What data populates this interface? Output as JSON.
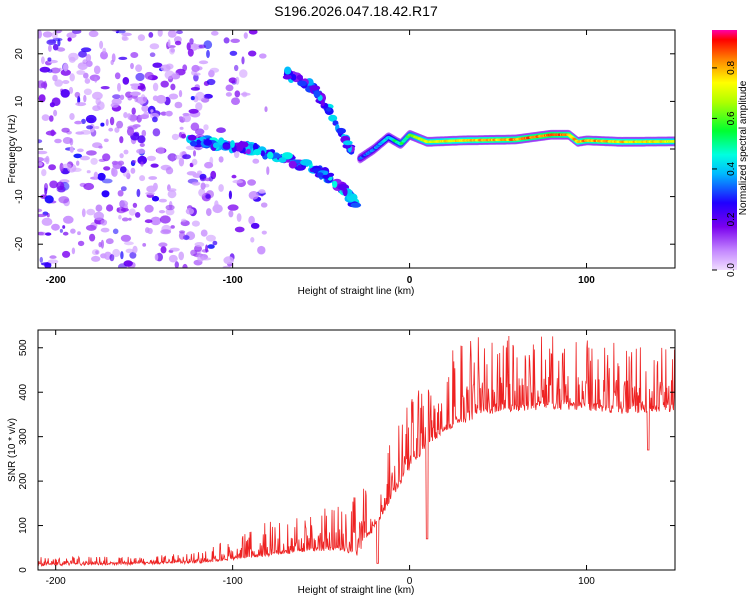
{
  "figure": {
    "title": "S196.2026.047.18.42.R17"
  },
  "chart_data": [
    {
      "type": "heatmap",
      "panel": "top",
      "xlabel": "Height of straight line (km)",
      "ylabel": "Frequency (Hz)",
      "xlim": [
        -210,
        150
      ],
      "ylim": [
        -25,
        25
      ],
      "xticks": [
        -200,
        -100,
        0,
        100
      ],
      "xtick_labels": [
        "-200",
        "-100",
        "0",
        "100"
      ],
      "yticks": [
        -20,
        -10,
        0,
        10,
        20
      ],
      "ytick_labels": [
        "-20",
        "-10",
        "0",
        "10",
        "20"
      ],
      "colorbar": {
        "label": "Normalized spectral amplitude",
        "range": [
          0,
          0.95
        ],
        "ticks": [
          0,
          0.2,
          0.4,
          0.6,
          0.8
        ],
        "tick_labels": [
          "0.0",
          "0.2",
          "0.4",
          "0.6",
          "0.8"
        ]
      },
      "features": {
        "carrier_line": {
          "x": [
            -28,
            -20,
            -12,
            -5,
            0,
            10,
            30,
            60,
            80,
            90,
            95,
            100,
            120,
            150
          ],
          "freq": [
            -2,
            0,
            2.5,
            1,
            3,
            1.5,
            1.8,
            2,
            3,
            3,
            1.5,
            1.8,
            1.5,
            1.6
          ],
          "amplitude": [
            0.3,
            0.35,
            0.45,
            0.55,
            0.6,
            0.75,
            0.8,
            0.85,
            0.9,
            0.85,
            0.8,
            0.85,
            0.8,
            0.75
          ]
        },
        "upper_branch": {
          "x": [
            -70,
            -55,
            -45,
            -38,
            -32
          ],
          "freq": [
            16,
            13,
            8,
            3,
            -1
          ]
        },
        "lower_branch": {
          "x": [
            -128,
            -110,
            -90,
            -70,
            -55,
            -45,
            -35,
            -30
          ],
          "freq": [
            2,
            1,
            0,
            -2,
            -4,
            -6,
            -9,
            -12
          ]
        },
        "noise_region": {
          "x_range": [
            -210,
            -100
          ],
          "freq_range": [
            -25,
            25
          ]
        }
      }
    },
    {
      "type": "line",
      "panel": "bottom",
      "xlabel": "Height of straight line (km)",
      "ylabel": "SNR (10 * v/v)",
      "xlim": [
        -210,
        150
      ],
      "ylim": [
        0,
        540
      ],
      "xticks": [
        -200,
        -100,
        0,
        100
      ],
      "xtick_labels": [
        "-200",
        "-100",
        "0",
        "100"
      ],
      "yticks": [
        0,
        100,
        200,
        300,
        400,
        500
      ],
      "ytick_labels": [
        "0",
        "100",
        "200",
        "300",
        "400",
        "500"
      ],
      "series": [
        {
          "name": "SNR",
          "color": "#ee2222",
          "baseline": {
            "x": [
              -210,
              -150,
              -120,
              -100,
              -80,
              -60,
              -40,
              -30,
              -18,
              -10,
              0,
              10,
              20,
              30,
              40,
              50,
              80,
              100,
              120,
              140,
              150
            ],
            "y": [
              12,
              15,
              18,
              25,
              35,
              45,
              50,
              40,
              110,
              170,
              230,
              290,
              320,
              340,
              355,
              365,
              370,
              368,
              360,
              362,
              365
            ]
          },
          "peak_envelope": {
            "x": [
              -210,
              -150,
              -120,
              -100,
              -80,
              -60,
              -40,
              -30,
              -18,
              -10,
              0,
              10,
              20,
              30,
              40,
              50,
              80,
              100,
              120,
              140,
              150
            ],
            "y": [
              30,
              30,
              40,
              70,
              110,
              120,
              150,
              190,
              230,
              300,
              380,
              440,
              480,
              520,
              530,
              530,
              530,
              520,
              510,
              500,
              505
            ]
          },
          "dips": [
            {
              "x": 10,
              "y": 70
            },
            {
              "x": -18,
              "y": 15
            },
            {
              "x": 135,
              "y": 270
            }
          ]
        }
      ]
    }
  ]
}
